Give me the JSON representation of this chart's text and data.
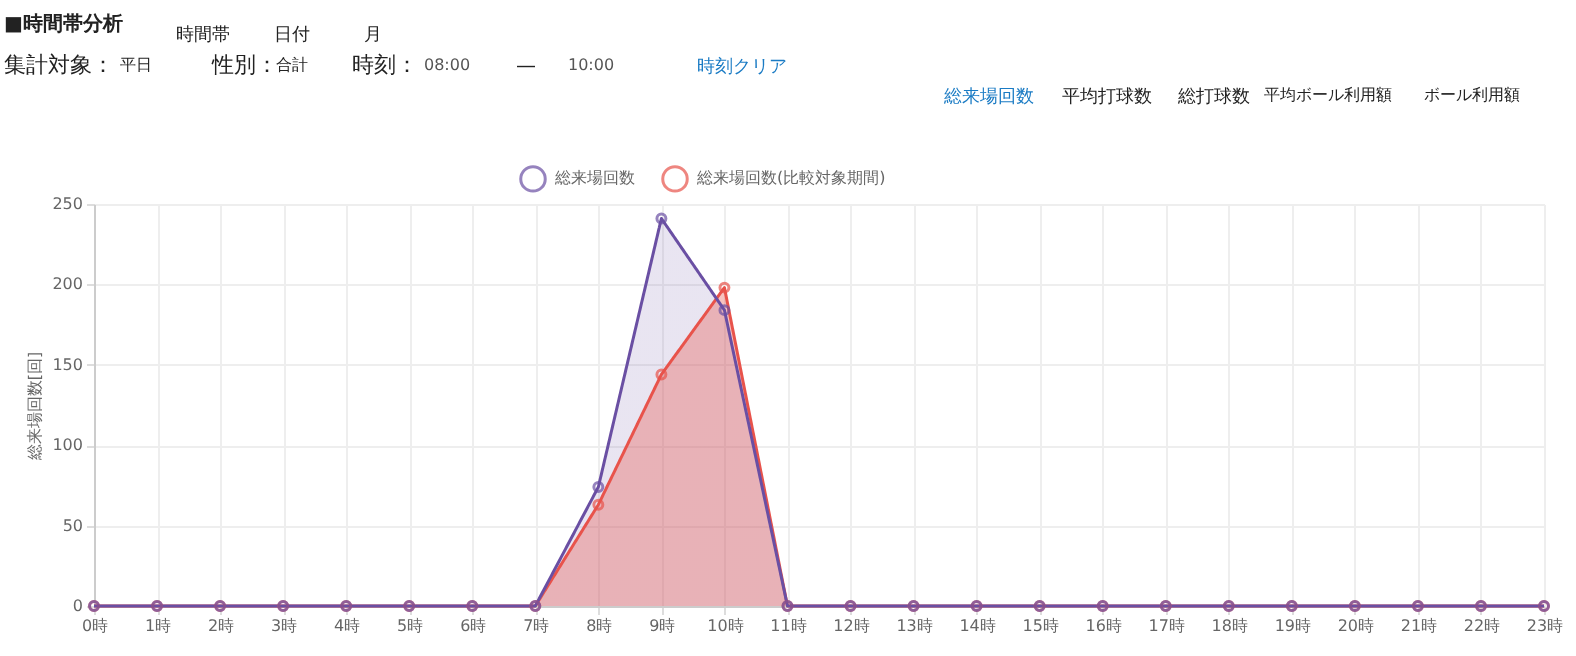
{
  "chart_data": {
    "type": "area",
    "title": "■時間帯分析",
    "categories": [
      "0時",
      "1時",
      "2時",
      "3時",
      "4時",
      "5時",
      "6時",
      "7時",
      "8時",
      "9時",
      "10時",
      "11時",
      "12時",
      "13時",
      "14時",
      "15時",
      "16時",
      "17時",
      "18時",
      "19時",
      "20時",
      "21時",
      "22時",
      "23時"
    ],
    "series": [
      {
        "name": "総来場回数",
        "color": "#6a4fa3",
        "values": [
          0,
          0,
          0,
          0,
          0,
          0,
          0,
          0,
          74,
          241,
          184,
          0,
          0,
          0,
          0,
          0,
          0,
          0,
          0,
          0,
          0,
          0,
          0,
          0
        ]
      },
      {
        "name": "総来場回数(比較対象期間)",
        "color": "#e8534b",
        "values": [
          0,
          0,
          0,
          0,
          0,
          0,
          0,
          0,
          63,
          144,
          198,
          0,
          0,
          0,
          0,
          0,
          0,
          0,
          0,
          0,
          0,
          0,
          0,
          0
        ]
      }
    ],
    "ylabel": "総来場回数[回]",
    "ylim": [
      0,
      250
    ],
    "yticks": [
      0,
      50,
      100,
      150,
      200,
      250
    ],
    "grid": true,
    "legend": "top",
    "marker": "circle",
    "annotations": [
      "時間帯",
      "日付",
      "月",
      "集計対象：",
      "平日",
      "性別：",
      "合計",
      "時刻：",
      "08:00",
      "—",
      "10:00",
      "時刻クリア",
      "総来場回数",
      "平均打球数",
      "総打球数",
      "平均ボール利用額",
      "ボール利用額"
    ]
  }
}
